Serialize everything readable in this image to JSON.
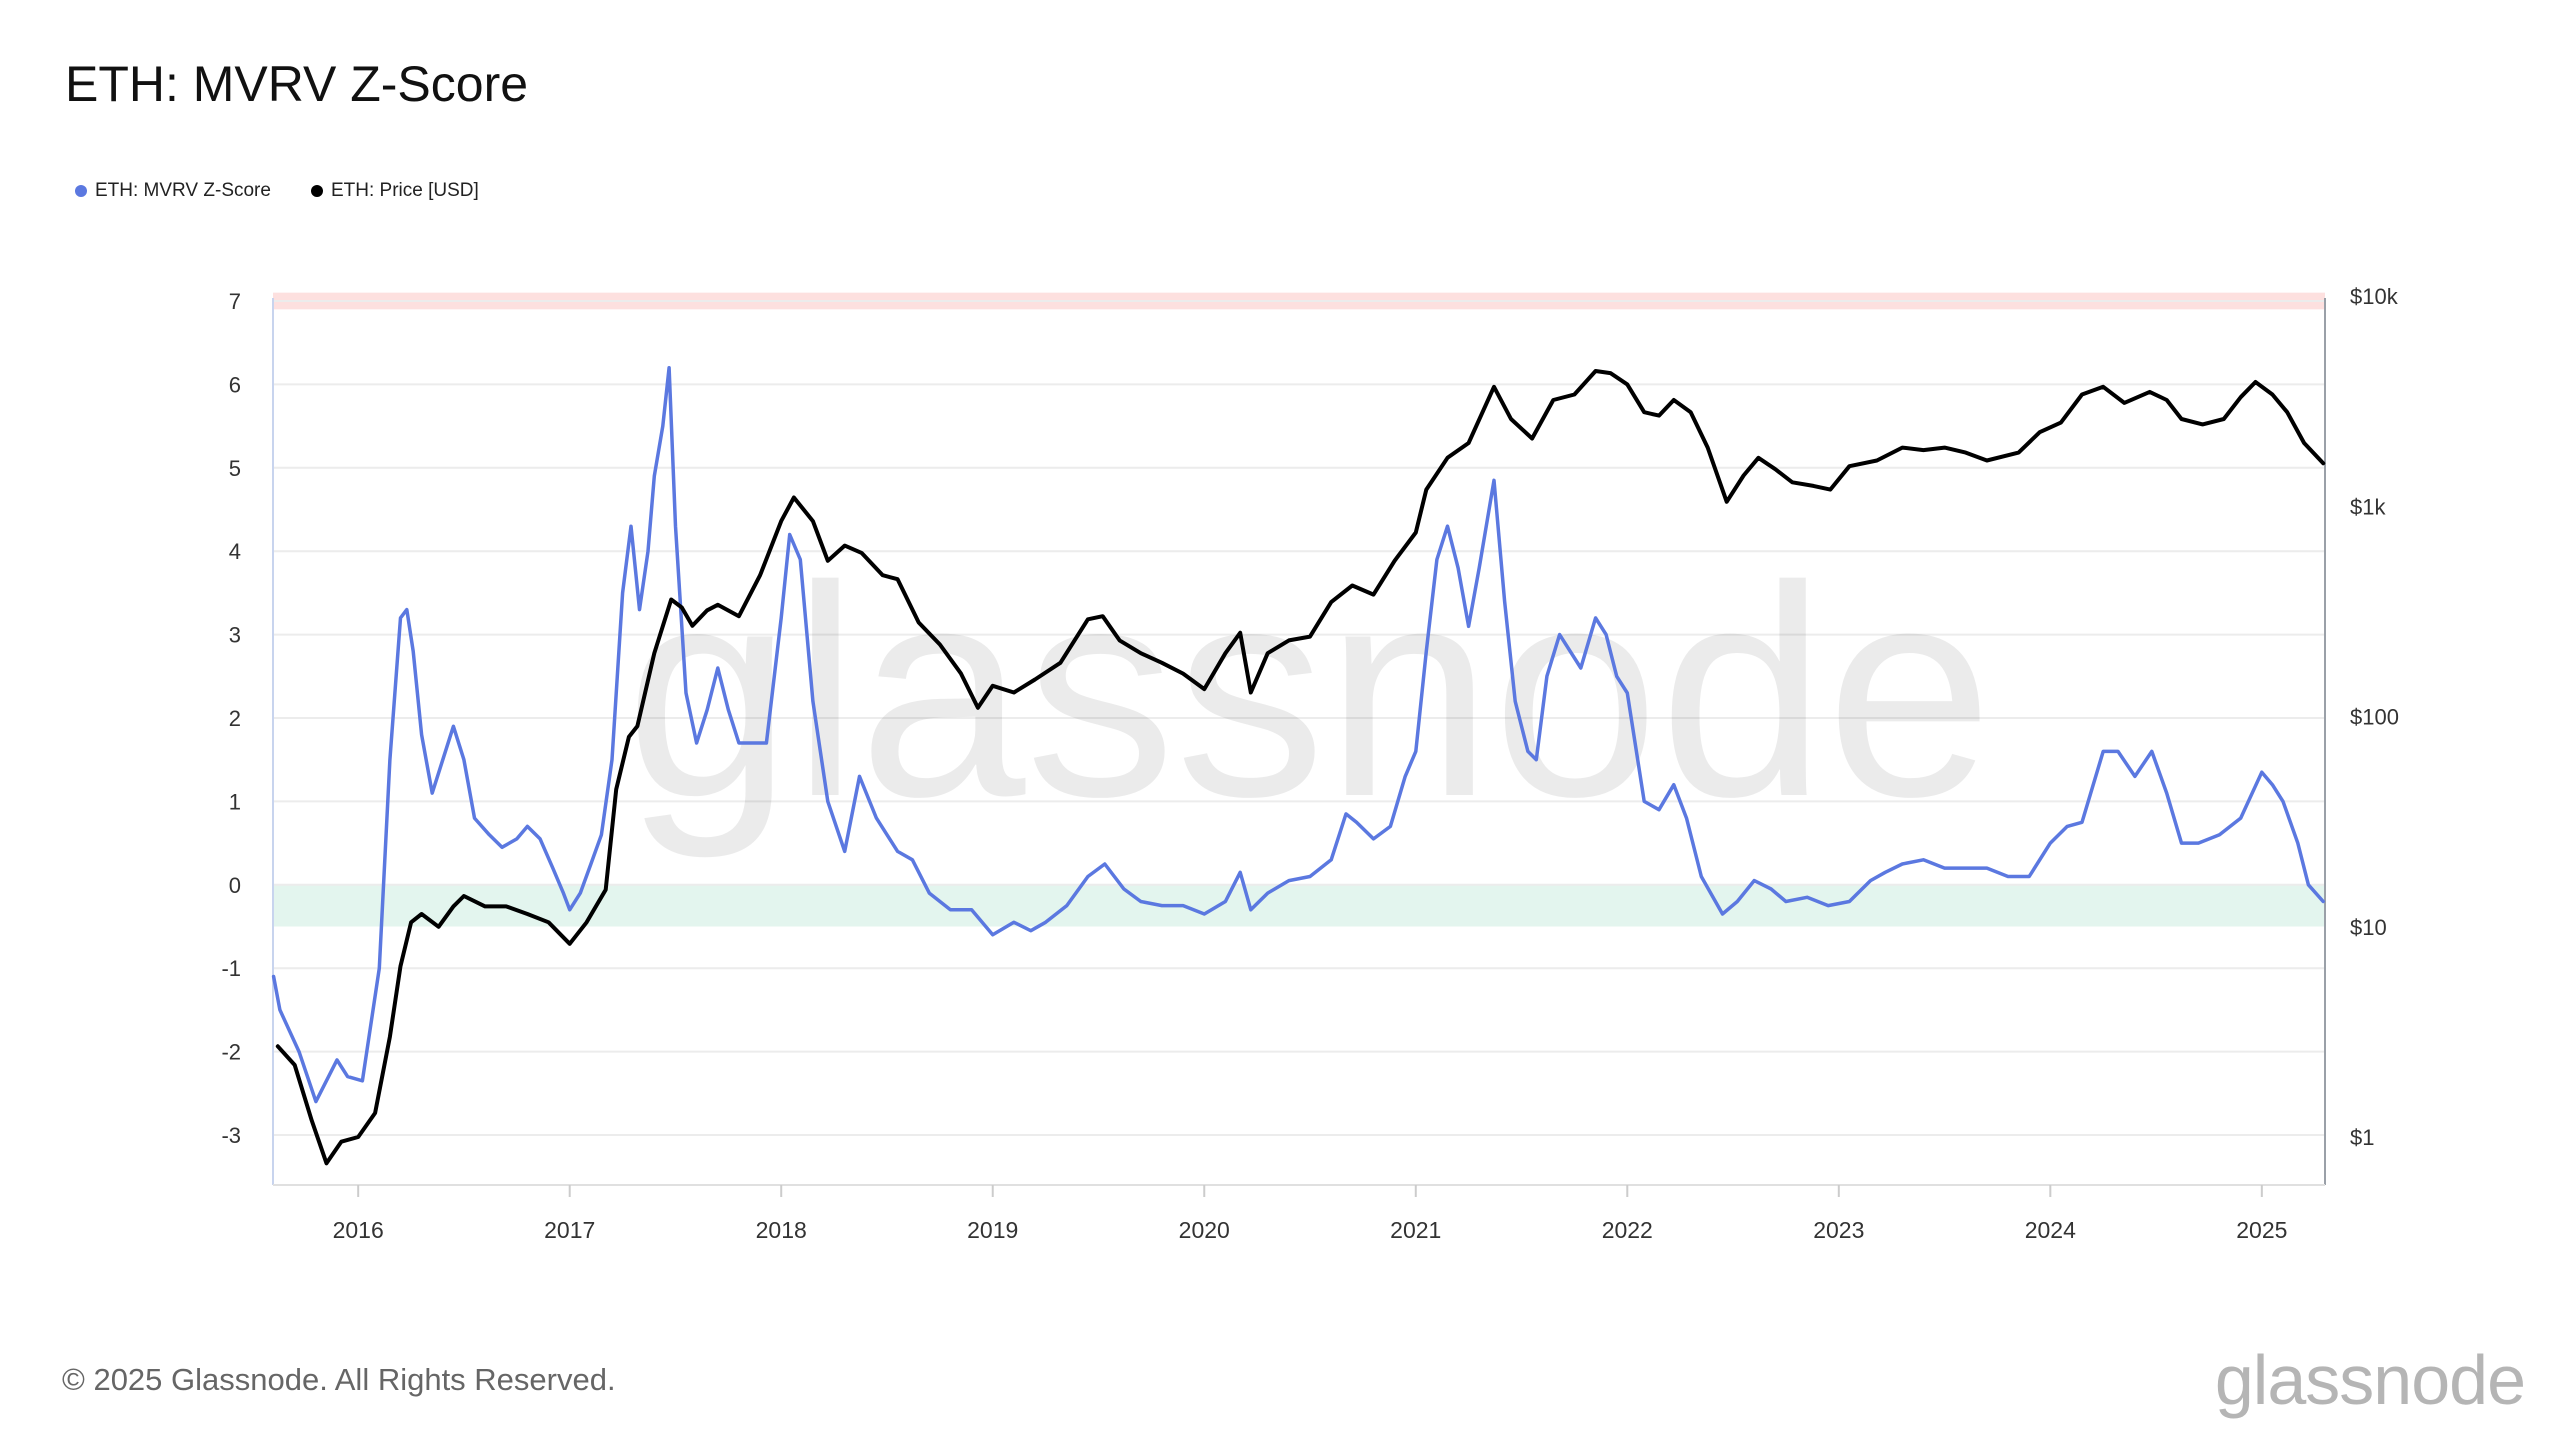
{
  "title": "ETH: MVRV Z-Score",
  "legend": [
    {
      "label": "ETH: MVRV Z-Score",
      "color": "#5b78e0"
    },
    {
      "label": "ETH: Price [USD]",
      "color": "#000000"
    }
  ],
  "footer": "© 2025 Glassnode. All Rights Reserved.",
  "brand": "glassnode",
  "watermark": "glassnode",
  "chart_data": {
    "type": "line",
    "x_range": [
      "2015-08-07",
      "2025-04-20"
    ],
    "x_ticks": [
      "2016",
      "2017",
      "2018",
      "2019",
      "2020",
      "2021",
      "2022",
      "2023",
      "2024",
      "2025"
    ],
    "left_axis": {
      "ticks": [
        "7",
        "6",
        "5",
        "4",
        "3",
        "2",
        "1",
        "0",
        "-1",
        "-2",
        "-3"
      ],
      "range": [
        -3.6,
        7.1
      ]
    },
    "right_axis": {
      "scale": "log",
      "ticks": [
        "$10k",
        "$1k",
        "$100",
        "$10",
        "$1"
      ],
      "range": [
        0.6,
        10000
      ]
    },
    "bands": [
      {
        "y_from": 6.9,
        "y_to": 7.1,
        "color": "#fde0df"
      },
      {
        "y_from": -0.5,
        "y_to": 0,
        "color": "#e3f5ee"
      }
    ],
    "series": [
      {
        "name": "ETH: MVRV Z-Score",
        "color": "#5b78e0",
        "axis": "left",
        "points": [
          [
            2015.6,
            -1.1
          ],
          [
            2015.63,
            -1.5
          ],
          [
            2015.72,
            -2.0
          ],
          [
            2015.8,
            -2.6
          ],
          [
            2015.9,
            -2.1
          ],
          [
            2015.95,
            -2.3
          ],
          [
            2016.02,
            -2.35
          ],
          [
            2016.1,
            -1.0
          ],
          [
            2016.15,
            1.5
          ],
          [
            2016.2,
            3.2
          ],
          [
            2016.23,
            3.3
          ],
          [
            2016.26,
            2.8
          ],
          [
            2016.3,
            1.8
          ],
          [
            2016.35,
            1.1
          ],
          [
            2016.4,
            1.5
          ],
          [
            2016.45,
            1.9
          ],
          [
            2016.5,
            1.5
          ],
          [
            2016.55,
            0.8
          ],
          [
            2016.62,
            0.6
          ],
          [
            2016.68,
            0.45
          ],
          [
            2016.75,
            0.55
          ],
          [
            2016.8,
            0.7
          ],
          [
            2016.86,
            0.55
          ],
          [
            2016.92,
            0.2
          ],
          [
            2016.97,
            -0.1
          ],
          [
            2017.0,
            -0.3
          ],
          [
            2017.05,
            -0.1
          ],
          [
            2017.1,
            0.25
          ],
          [
            2017.15,
            0.6
          ],
          [
            2017.2,
            1.5
          ],
          [
            2017.25,
            3.5
          ],
          [
            2017.29,
            4.3
          ],
          [
            2017.33,
            3.3
          ],
          [
            2017.37,
            4.0
          ],
          [
            2017.4,
            4.9
          ],
          [
            2017.44,
            5.5
          ],
          [
            2017.47,
            6.2
          ],
          [
            2017.5,
            4.3
          ],
          [
            2017.55,
            2.3
          ],
          [
            2017.6,
            1.7
          ],
          [
            2017.65,
            2.1
          ],
          [
            2017.7,
            2.6
          ],
          [
            2017.75,
            2.1
          ],
          [
            2017.8,
            1.7
          ],
          [
            2017.87,
            1.7
          ],
          [
            2017.93,
            1.7
          ],
          [
            2018.0,
            3.2
          ],
          [
            2018.04,
            4.2
          ],
          [
            2018.09,
            3.9
          ],
          [
            2018.15,
            2.2
          ],
          [
            2018.22,
            1.0
          ],
          [
            2018.3,
            0.4
          ],
          [
            2018.37,
            1.3
          ],
          [
            2018.45,
            0.8
          ],
          [
            2018.55,
            0.4
          ],
          [
            2018.62,
            0.3
          ],
          [
            2018.7,
            -0.1
          ],
          [
            2018.8,
            -0.3
          ],
          [
            2018.9,
            -0.3
          ],
          [
            2019.0,
            -0.6
          ],
          [
            2019.1,
            -0.45
          ],
          [
            2019.18,
            -0.55
          ],
          [
            2019.25,
            -0.45
          ],
          [
            2019.35,
            -0.25
          ],
          [
            2019.45,
            0.1
          ],
          [
            2019.53,
            0.25
          ],
          [
            2019.62,
            -0.05
          ],
          [
            2019.7,
            -0.2
          ],
          [
            2019.8,
            -0.25
          ],
          [
            2019.9,
            -0.25
          ],
          [
            2020.0,
            -0.35
          ],
          [
            2020.1,
            -0.2
          ],
          [
            2020.17,
            0.15
          ],
          [
            2020.22,
            -0.3
          ],
          [
            2020.3,
            -0.1
          ],
          [
            2020.4,
            0.05
          ],
          [
            2020.5,
            0.1
          ],
          [
            2020.6,
            0.3
          ],
          [
            2020.67,
            0.85
          ],
          [
            2020.72,
            0.75
          ],
          [
            2020.8,
            0.55
          ],
          [
            2020.88,
            0.7
          ],
          [
            2020.95,
            1.3
          ],
          [
            2021.0,
            1.6
          ],
          [
            2021.05,
            2.8
          ],
          [
            2021.1,
            3.9
          ],
          [
            2021.15,
            4.3
          ],
          [
            2021.2,
            3.8
          ],
          [
            2021.25,
            3.1
          ],
          [
            2021.3,
            3.8
          ],
          [
            2021.37,
            4.85
          ],
          [
            2021.42,
            3.4
          ],
          [
            2021.47,
            2.2
          ],
          [
            2021.53,
            1.6
          ],
          [
            2021.57,
            1.5
          ],
          [
            2021.62,
            2.5
          ],
          [
            2021.68,
            3.0
          ],
          [
            2021.73,
            2.8
          ],
          [
            2021.78,
            2.6
          ],
          [
            2021.85,
            3.2
          ],
          [
            2021.9,
            3.0
          ],
          [
            2021.95,
            2.5
          ],
          [
            2022.0,
            2.3
          ],
          [
            2022.08,
            1.0
          ],
          [
            2022.15,
            0.9
          ],
          [
            2022.22,
            1.2
          ],
          [
            2022.28,
            0.8
          ],
          [
            2022.35,
            0.1
          ],
          [
            2022.45,
            -0.35
          ],
          [
            2022.52,
            -0.2
          ],
          [
            2022.6,
            0.05
          ],
          [
            2022.68,
            -0.05
          ],
          [
            2022.75,
            -0.2
          ],
          [
            2022.85,
            -0.15
          ],
          [
            2022.95,
            -0.25
          ],
          [
            2023.05,
            -0.2
          ],
          [
            2023.15,
            0.05
          ],
          [
            2023.22,
            0.15
          ],
          [
            2023.3,
            0.25
          ],
          [
            2023.4,
            0.3
          ],
          [
            2023.5,
            0.2
          ],
          [
            2023.6,
            0.2
          ],
          [
            2023.7,
            0.2
          ],
          [
            2023.8,
            0.1
          ],
          [
            2023.9,
            0.1
          ],
          [
            2024.0,
            0.5
          ],
          [
            2024.08,
            0.7
          ],
          [
            2024.15,
            0.75
          ],
          [
            2024.25,
            1.6
          ],
          [
            2024.32,
            1.6
          ],
          [
            2024.4,
            1.3
          ],
          [
            2024.48,
            1.6
          ],
          [
            2024.55,
            1.1
          ],
          [
            2024.62,
            0.5
          ],
          [
            2024.7,
            0.5
          ],
          [
            2024.8,
            0.6
          ],
          [
            2024.9,
            0.8
          ],
          [
            2025.0,
            1.35
          ],
          [
            2025.05,
            1.2
          ],
          [
            2025.1,
            1.0
          ],
          [
            2025.17,
            0.5
          ],
          [
            2025.22,
            0.0
          ],
          [
            2025.29,
            -0.2
          ]
        ]
      },
      {
        "name": "ETH: Price [USD]",
        "color": "#000000",
        "axis": "right",
        "points": [
          [
            2015.62,
            2.7
          ],
          [
            2015.7,
            2.2
          ],
          [
            2015.78,
            1.2
          ],
          [
            2015.85,
            0.75
          ],
          [
            2015.92,
            0.95
          ],
          [
            2016.0,
            1.0
          ],
          [
            2016.08,
            1.3
          ],
          [
            2016.15,
            3.0
          ],
          [
            2016.2,
            6.5
          ],
          [
            2016.25,
            10.5
          ],
          [
            2016.3,
            11.5
          ],
          [
            2016.38,
            10.0
          ],
          [
            2016.45,
            12.5
          ],
          [
            2016.5,
            14.0
          ],
          [
            2016.6,
            12.5
          ],
          [
            2016.7,
            12.5
          ],
          [
            2016.8,
            11.5
          ],
          [
            2016.9,
            10.5
          ],
          [
            2017.0,
            8.3
          ],
          [
            2017.08,
            10.5
          ],
          [
            2017.17,
            15.0
          ],
          [
            2017.22,
            45.0
          ],
          [
            2017.28,
            80.0
          ],
          [
            2017.32,
            90.0
          ],
          [
            2017.4,
            200.0
          ],
          [
            2017.48,
            360.0
          ],
          [
            2017.53,
            330.0
          ],
          [
            2017.58,
            270.0
          ],
          [
            2017.65,
            320.0
          ],
          [
            2017.7,
            340.0
          ],
          [
            2017.8,
            300.0
          ],
          [
            2017.9,
            470.0
          ],
          [
            2018.0,
            850.0
          ],
          [
            2018.06,
            1100.0
          ],
          [
            2018.15,
            850.0
          ],
          [
            2018.22,
            550.0
          ],
          [
            2018.3,
            650.0
          ],
          [
            2018.38,
            600.0
          ],
          [
            2018.48,
            470.0
          ],
          [
            2018.55,
            450.0
          ],
          [
            2018.65,
            280.0
          ],
          [
            2018.75,
            220.0
          ],
          [
            2018.85,
            160.0
          ],
          [
            2018.93,
            110.0
          ],
          [
            2019.0,
            140.0
          ],
          [
            2019.1,
            130.0
          ],
          [
            2019.2,
            150.0
          ],
          [
            2019.32,
            180.0
          ],
          [
            2019.45,
            290.0
          ],
          [
            2019.52,
            300.0
          ],
          [
            2019.6,
            230.0
          ],
          [
            2019.7,
            200.0
          ],
          [
            2019.8,
            180.0
          ],
          [
            2019.9,
            160.0
          ],
          [
            2020.0,
            135.0
          ],
          [
            2020.1,
            200.0
          ],
          [
            2020.17,
            250.0
          ],
          [
            2020.22,
            130.0
          ],
          [
            2020.3,
            200.0
          ],
          [
            2020.4,
            230.0
          ],
          [
            2020.5,
            240.0
          ],
          [
            2020.6,
            350.0
          ],
          [
            2020.7,
            420.0
          ],
          [
            2020.8,
            380.0
          ],
          [
            2020.9,
            550.0
          ],
          [
            2021.0,
            750.0
          ],
          [
            2021.05,
            1200.0
          ],
          [
            2021.15,
            1700.0
          ],
          [
            2021.25,
            2000.0
          ],
          [
            2021.37,
            3700.0
          ],
          [
            2021.45,
            2600.0
          ],
          [
            2021.55,
            2100.0
          ],
          [
            2021.65,
            3200.0
          ],
          [
            2021.75,
            3400.0
          ],
          [
            2021.85,
            4400.0
          ],
          [
            2021.92,
            4300.0
          ],
          [
            2022.0,
            3800.0
          ],
          [
            2022.08,
            2800.0
          ],
          [
            2022.15,
            2700.0
          ],
          [
            2022.22,
            3200.0
          ],
          [
            2022.3,
            2800.0
          ],
          [
            2022.38,
            1900.0
          ],
          [
            2022.47,
            1050.0
          ],
          [
            2022.55,
            1400.0
          ],
          [
            2022.62,
            1700.0
          ],
          [
            2022.7,
            1500.0
          ],
          [
            2022.78,
            1300.0
          ],
          [
            2022.88,
            1250.0
          ],
          [
            2022.96,
            1200.0
          ],
          [
            2023.05,
            1550.0
          ],
          [
            2023.18,
            1650.0
          ],
          [
            2023.3,
            1900.0
          ],
          [
            2023.4,
            1850.0
          ],
          [
            2023.5,
            1900.0
          ],
          [
            2023.6,
            1800.0
          ],
          [
            2023.7,
            1650.0
          ],
          [
            2023.85,
            1800.0
          ],
          [
            2023.95,
            2250.0
          ],
          [
            2024.05,
            2500.0
          ],
          [
            2024.15,
            3400.0
          ],
          [
            2024.25,
            3700.0
          ],
          [
            2024.35,
            3100.0
          ],
          [
            2024.47,
            3500.0
          ],
          [
            2024.55,
            3200.0
          ],
          [
            2024.62,
            2600.0
          ],
          [
            2024.72,
            2450.0
          ],
          [
            2024.82,
            2600.0
          ],
          [
            2024.9,
            3300.0
          ],
          [
            2024.97,
            3900.0
          ],
          [
            2025.05,
            3400.0
          ],
          [
            2025.12,
            2800.0
          ],
          [
            2025.2,
            2000.0
          ],
          [
            2025.29,
            1600.0
          ]
        ]
      }
    ]
  }
}
